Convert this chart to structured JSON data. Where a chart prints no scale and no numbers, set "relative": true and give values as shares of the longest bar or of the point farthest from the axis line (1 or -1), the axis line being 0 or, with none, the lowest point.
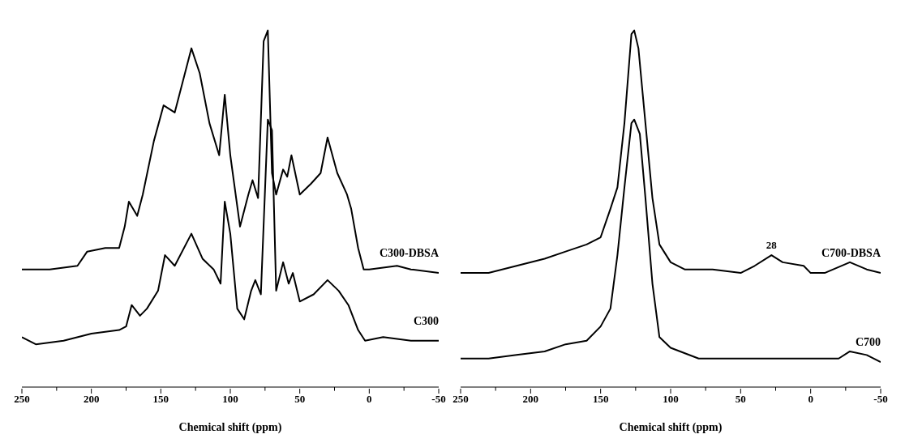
{
  "chart_data": [
    {
      "type": "line",
      "xlabel": "Chemical shift (ppm)",
      "relative": true,
      "xlim": [
        250,
        -50
      ],
      "xticks": [
        250,
        {
          "value": 225,
          "label": null
        },
        200,
        {
          "value": 175,
          "label": null
        },
        150,
        {
          "value": 125,
          "label": null
        },
        100,
        {
          "value": 75,
          "label": null
        },
        50,
        {
          "value": 25,
          "label": null
        },
        0,
        {
          "value": -25,
          "label": null
        },
        -50
      ],
      "series": [
        {
          "name": "C300-DBSA",
          "color": "#000000",
          "x": [
            250,
            230,
            210,
            203,
            190,
            180,
            176,
            173,
            167,
            163,
            155,
            148,
            140,
            128,
            122,
            115,
            108,
            104,
            100,
            93,
            87,
            84,
            80,
            76,
            73,
            70,
            67,
            62,
            59,
            56,
            50,
            42,
            35,
            30,
            23,
            16,
            13,
            8,
            4,
            0,
            -20,
            -30,
            -50
          ],
          "values": [
            0.33,
            0.33,
            0.34,
            0.38,
            0.39,
            0.39,
            0.45,
            0.52,
            0.48,
            0.54,
            0.69,
            0.79,
            0.77,
            0.95,
            0.88,
            0.74,
            0.65,
            0.82,
            0.65,
            0.45,
            0.54,
            0.58,
            0.53,
            0.97,
            1.0,
            0.6,
            0.54,
            0.61,
            0.59,
            0.65,
            0.54,
            0.57,
            0.6,
            0.7,
            0.6,
            0.54,
            0.5,
            0.39,
            0.33,
            0.33,
            0.34,
            0.33,
            0.32
          ]
        },
        {
          "name": "C300",
          "color": "#000000",
          "x": [
            250,
            240,
            220,
            200,
            180,
            175,
            171,
            165,
            160,
            152,
            147,
            140,
            128,
            120,
            112,
            107,
            104,
            100,
            95,
            90,
            85,
            82,
            78,
            73,
            70,
            67,
            62,
            58,
            55,
            50,
            40,
            30,
            22,
            15,
            8,
            3,
            -10,
            -30,
            -50
          ],
          "values": [
            0.14,
            0.12,
            0.13,
            0.15,
            0.16,
            0.17,
            0.23,
            0.2,
            0.22,
            0.27,
            0.37,
            0.34,
            0.43,
            0.36,
            0.33,
            0.29,
            0.52,
            0.43,
            0.22,
            0.19,
            0.27,
            0.3,
            0.26,
            0.75,
            0.72,
            0.27,
            0.35,
            0.29,
            0.32,
            0.24,
            0.26,
            0.3,
            0.27,
            0.23,
            0.16,
            0.13,
            0.14,
            0.13,
            0.13
          ]
        }
      ]
    },
    {
      "type": "line",
      "xlabel": "Chemical shift (ppm)",
      "relative": true,
      "xlim": [
        250,
        -50
      ],
      "xticks": [
        250,
        {
          "value": 225,
          "label": null
        },
        200,
        {
          "value": 175,
          "label": null
        },
        150,
        {
          "value": 125,
          "label": null
        },
        100,
        {
          "value": 75,
          "label": null
        },
        50,
        {
          "value": 25,
          "label": null
        },
        0,
        {
          "value": -25,
          "label": null
        },
        -50
      ],
      "annotations": [
        {
          "text": "28",
          "x": 28,
          "y": 0.37
        }
      ],
      "series": [
        {
          "name": "C700-DBSA",
          "color": "#000000",
          "x": [
            250,
            230,
            210,
            190,
            175,
            160,
            150,
            143,
            138,
            133,
            128,
            126,
            123,
            118,
            113,
            108,
            100,
            90,
            70,
            50,
            40,
            28,
            20,
            5,
            0,
            -10,
            -28,
            -40,
            -50
          ],
          "values": [
            0.32,
            0.32,
            0.34,
            0.36,
            0.38,
            0.4,
            0.42,
            0.5,
            0.56,
            0.74,
            0.99,
            1.0,
            0.95,
            0.74,
            0.53,
            0.4,
            0.35,
            0.33,
            0.33,
            0.32,
            0.34,
            0.37,
            0.35,
            0.34,
            0.32,
            0.32,
            0.35,
            0.33,
            0.32
          ]
        },
        {
          "name": "C700",
          "color": "#000000",
          "x": [
            250,
            230,
            210,
            190,
            175,
            160,
            150,
            143,
            138,
            133,
            128,
            126,
            122,
            118,
            113,
            108,
            100,
            80,
            50,
            0,
            -20,
            -28,
            -40,
            -50
          ],
          "values": [
            0.08,
            0.08,
            0.09,
            0.1,
            0.12,
            0.13,
            0.17,
            0.22,
            0.37,
            0.56,
            0.74,
            0.75,
            0.71,
            0.53,
            0.29,
            0.14,
            0.11,
            0.08,
            0.08,
            0.08,
            0.08,
            0.1,
            0.09,
            0.07
          ]
        }
      ]
    }
  ]
}
